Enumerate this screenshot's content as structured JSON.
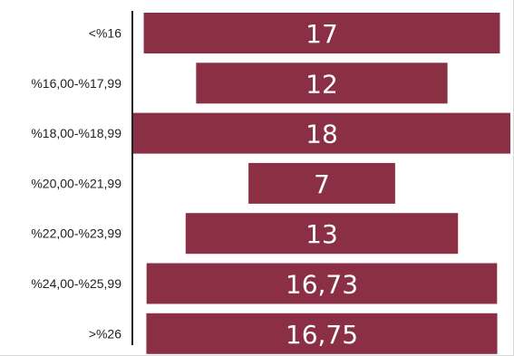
{
  "chart_data": {
    "type": "bar",
    "orientation": "horizontal",
    "layout": "funnel-centered",
    "categories": [
      "<%16",
      "%16,00-%17,99",
      "%18,00-%18,99",
      "%20,00-%21,99",
      "%22,00-%23,99",
      "%24,00-%25,99",
      ">%26"
    ],
    "values": [
      17,
      12,
      18,
      7,
      13,
      16.73,
      16.75
    ],
    "value_labels": [
      "17",
      "12",
      "18",
      "7",
      "13",
      "16,73",
      "16,75"
    ],
    "xlim": [
      0,
      18
    ],
    "grid": false,
    "legend": "none",
    "bar_color": "#8b3044",
    "label_color": "#ffffff"
  }
}
